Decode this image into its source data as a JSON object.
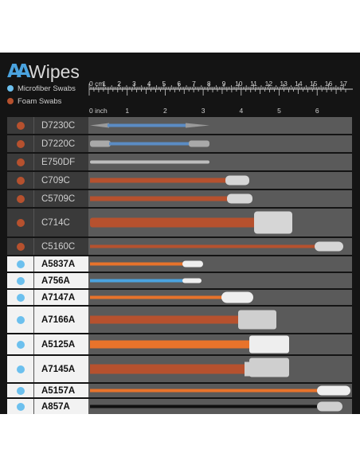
{
  "brand": {
    "logo_mark": "AA",
    "logo_word": "Wipes"
  },
  "legend": [
    {
      "label": "Microfiber Swabs",
      "color": "#6cc0ee"
    },
    {
      "label": "Foam Swabs",
      "color": "#b6512e"
    }
  ],
  "ruler": {
    "cm_label": "0 cm",
    "cm_ticks": [
      "1",
      "2",
      "3",
      "4",
      "5",
      "6",
      "7",
      "8",
      "9",
      "10",
      "11",
      "12",
      "13",
      "14",
      "15",
      "16",
      "17"
    ],
    "inch_label": "0 inch",
    "inch_ticks": [
      "1",
      "2",
      "3",
      "4",
      "5",
      "6"
    ]
  },
  "colors": {
    "microfiber": "#6cc0ee",
    "foam": "#b6512e",
    "handle_orange": "#e8732b",
    "tip_white": "#eeeeee"
  },
  "swabs": [
    {
      "name": "D7230C",
      "type": "foam"
    },
    {
      "name": "D7220C",
      "type": "foam"
    },
    {
      "name": "E750DF",
      "type": "foam"
    },
    {
      "name": "C709C",
      "type": "foam"
    },
    {
      "name": "C5709C",
      "type": "foam"
    },
    {
      "name": "C714C",
      "type": "foam"
    },
    {
      "name": "C5160C",
      "type": "foam"
    },
    {
      "name": "A5837A",
      "type": "microfiber"
    },
    {
      "name": "A756A",
      "type": "microfiber"
    },
    {
      "name": "A7147A",
      "type": "microfiber"
    },
    {
      "name": "A7166A",
      "type": "microfiber"
    },
    {
      "name": "A5125A",
      "type": "microfiber"
    },
    {
      "name": "A7145A",
      "type": "microfiber"
    },
    {
      "name": "A5157A",
      "type": "microfiber"
    },
    {
      "name": "A857A",
      "type": "microfiber"
    }
  ]
}
